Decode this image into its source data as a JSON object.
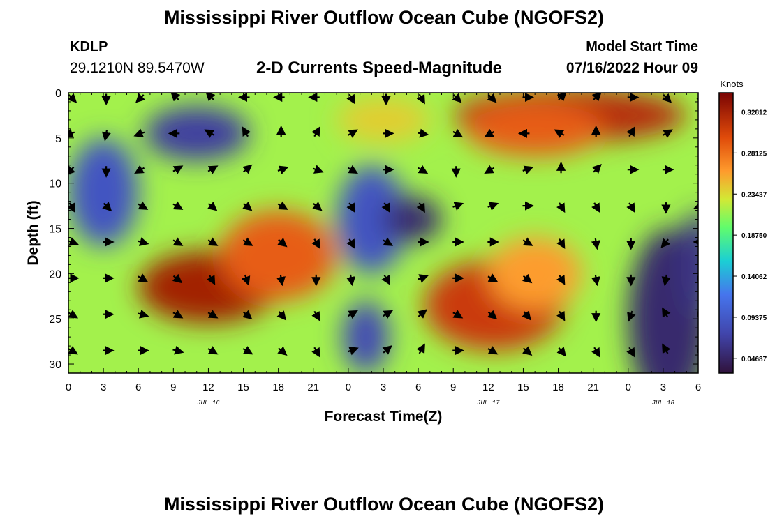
{
  "header": {
    "title": "Mississippi River Outflow Ocean Cube (NGOFS2)",
    "station": "KDLP",
    "coords": "29.1210N  89.5470W",
    "product": "2-D Currents Speed-Magnitude",
    "model_start_label": "Model Start Time",
    "model_start_value": "07/16/2022 Hour 09"
  },
  "footer": {
    "title": "Mississippi River Outflow Ocean Cube (NGOFS2)"
  },
  "chart_data": {
    "type": "heatmap",
    "title": "2-D Currents Speed-Magnitude",
    "xlabel": "Forecast Time(Z)",
    "ylabel": "Depth (ft)",
    "x_range_hours": [
      0,
      54
    ],
    "y_range_ft": [
      0,
      31
    ],
    "y_inverted": true,
    "x_tick_labels": [
      "0",
      "3",
      "6",
      "9",
      "12",
      "15",
      "18",
      "21",
      "0",
      "3",
      "6",
      "9",
      "12",
      "15",
      "18",
      "21",
      "0",
      "3",
      "6"
    ],
    "y_ticks": [
      0,
      5,
      10,
      15,
      20,
      25,
      30
    ],
    "date_labels": [
      {
        "text": "JUL 16",
        "hour": 12
      },
      {
        "text": "JUL 17",
        "hour": 36
      },
      {
        "text": "JUL 18",
        "hour": 51
      }
    ],
    "colorbar": {
      "unit": "Knots",
      "range": [
        0.03,
        0.35
      ],
      "tick_values": [
        0.328125,
        0.28125,
        0.234375,
        0.1875,
        0.140625,
        0.09375,
        0.046875
      ],
      "tick_labels": [
        "0.32812",
        "0.28125",
        "0.23437",
        "0.18750",
        "0.14062",
        "0.09375",
        "0.04687"
      ]
    },
    "field_notes": "Current speed (knots) vs forecast hour and depth; values estimated from color blobs",
    "blobs": [
      {
        "x": 11,
        "y": 4.5,
        "value": 0.07,
        "rx": 4.5,
        "ry": 3
      },
      {
        "x": 3,
        "y": 11,
        "value": 0.09,
        "rx": 3,
        "ry": 6
      },
      {
        "x": 12,
        "y": 21.5,
        "value": 0.33,
        "rx": 6,
        "ry": 4
      },
      {
        "x": 18,
        "y": 18,
        "value": 0.29,
        "rx": 5,
        "ry": 5
      },
      {
        "x": 26,
        "y": 14,
        "value": 0.09,
        "rx": 3,
        "ry": 6
      },
      {
        "x": 29.5,
        "y": 14,
        "value": 0.05,
        "rx": 2.5,
        "ry": 2.5
      },
      {
        "x": 25.5,
        "y": 27,
        "value": 0.08,
        "rx": 2,
        "ry": 4
      },
      {
        "x": 36.5,
        "y": 23.5,
        "value": 0.31,
        "rx": 6,
        "ry": 5
      },
      {
        "x": 40,
        "y": 20,
        "value": 0.26,
        "rx": 4,
        "ry": 4
      },
      {
        "x": 43,
        "y": 2.5,
        "value": 0.32,
        "rx": 10,
        "ry": 3
      },
      {
        "x": 40,
        "y": 4,
        "value": 0.29,
        "rx": 6,
        "ry": 3
      },
      {
        "x": 51.5,
        "y": 25,
        "value": 0.05,
        "rx": 3.5,
        "ry": 10
      },
      {
        "x": 54,
        "y": 19,
        "value": 0.06,
        "rx": 1.5,
        "ry": 6
      },
      {
        "x": 27,
        "y": 3,
        "value": 0.24,
        "rx": 4,
        "ry": 2.5
      }
    ],
    "vectors": [
      {
        "row_depth": 0.5,
        "angles_deg": [
          315,
          270,
          225,
          135,
          135,
          180,
          180,
          180,
          300,
          270,
          300,
          315,
          315,
          0,
          45,
          45,
          0,
          315,
          300
        ]
      },
      {
        "row_depth": 4.5,
        "angles_deg": [
          200,
          260,
          200,
          180,
          150,
          120,
          90,
          60,
          30,
          0,
          350,
          330,
          210,
          180,
          150,
          90,
          60,
          30,
          330
        ]
      },
      {
        "row_depth": 8.5,
        "angles_deg": [
          225,
          270,
          210,
          30,
          30,
          40,
          20,
          340,
          330,
          0,
          330,
          270,
          210,
          20,
          90,
          45,
          0,
          0,
          330
        ]
      },
      {
        "row_depth": 12.5,
        "angles_deg": [
          300,
          315,
          330,
          330,
          320,
          320,
          330,
          320,
          300,
          300,
          300,
          20,
          20,
          0,
          300,
          300,
          300,
          270,
          200
        ]
      },
      {
        "row_depth": 16.5,
        "angles_deg": [
          340,
          0,
          345,
          330,
          330,
          330,
          320,
          300,
          300,
          330,
          0,
          0,
          0,
          330,
          300,
          280,
          270,
          230,
          180
        ]
      },
      {
        "row_depth": 20.5,
        "angles_deg": [
          0,
          0,
          330,
          320,
          300,
          290,
          280,
          270,
          280,
          300,
          20,
          0,
          330,
          320,
          300,
          280,
          270,
          260,
          250
        ]
      },
      {
        "row_depth": 24.5,
        "angles_deg": [
          330,
          0,
          345,
          330,
          330,
          320,
          310,
          300,
          30,
          30,
          40,
          330,
          320,
          310,
          300,
          270,
          250,
          120,
          110
        ]
      },
      {
        "row_depth": 28.5,
        "angles_deg": [
          330,
          0,
          0,
          345,
          330,
          330,
          320,
          300,
          20,
          40,
          60,
          0,
          330,
          320,
          310,
          300,
          300,
          120,
          110
        ]
      }
    ]
  }
}
